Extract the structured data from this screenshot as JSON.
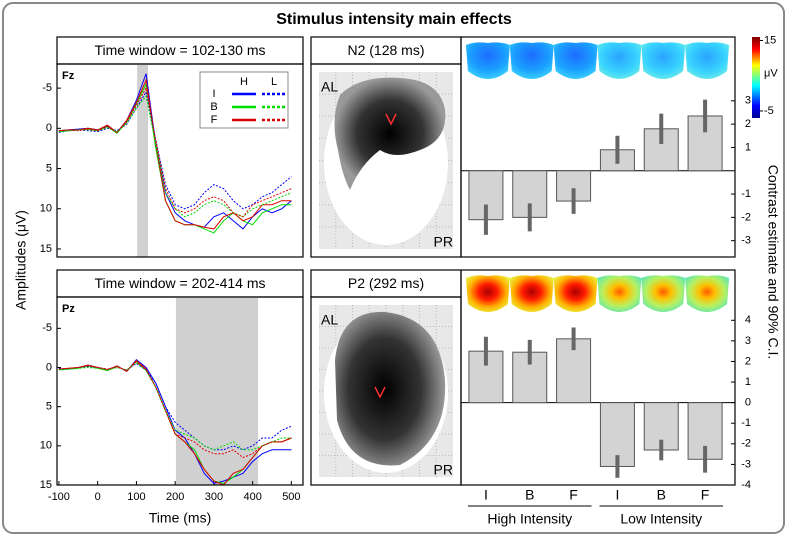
{
  "title": "Stimulus intensity main effects",
  "ylabel": "Amplitudes (μV)",
  "contrast_axis_label": "Contrast estimate and 90% C.I.",
  "colorbar": {
    "label": "μV",
    "ticks": [
      -5,
      15
    ],
    "lim": [
      -7,
      16
    ]
  },
  "sources": [
    {
      "title": "N2 (128 ms)",
      "labels": [
        "AL",
        "PR"
      ]
    },
    {
      "title": "P2 (292 ms)",
      "labels": [
        "AL",
        "PR"
      ]
    }
  ],
  "chart_data": [
    {
      "type": "line",
      "title": "Time window = 102-130 ms",
      "channel": "Fz",
      "x": [
        -100,
        -75,
        -50,
        -25,
        0,
        25,
        50,
        75,
        100,
        125,
        150,
        175,
        200,
        225,
        250,
        275,
        300,
        325,
        350,
        375,
        400,
        425,
        450,
        475,
        500
      ],
      "xlim": [
        -105,
        530
      ],
      "ylim": [
        -8,
        16
      ],
      "y_reversed": true,
      "yticks": [
        -5,
        0,
        5,
        10,
        15
      ],
      "window": [
        102,
        130
      ],
      "legend": {
        "rows": [
          "I",
          "B",
          "F"
        ],
        "columns": [
          "H",
          "L"
        ]
      },
      "series": [
        {
          "row": 0,
          "column": 0,
          "color": "#0000ff",
          "line_style": "solid",
          "values": [
            0.3,
            0.2,
            0.1,
            0,
            0.2,
            -0.3,
            0.5,
            -1,
            -3.5,
            -6.8,
            2,
            8,
            10.5,
            11.5,
            12,
            12.3,
            11,
            10.5,
            11.5,
            12.5,
            11,
            10,
            10.5,
            10,
            9
          ]
        },
        {
          "row": 1,
          "column": 0,
          "color": "#00dd00",
          "line_style": "solid",
          "values": [
            0.4,
            0.3,
            0.2,
            0.1,
            0.3,
            -0.2,
            0.6,
            -0.8,
            -3,
            -5.5,
            2.5,
            9,
            11.5,
            12,
            12,
            12.5,
            13,
            11.5,
            10.5,
            11.5,
            12,
            10.5,
            10,
            9.5,
            9.5
          ]
        },
        {
          "row": 2,
          "column": 0,
          "color": "#dd0000",
          "line_style": "solid",
          "values": [
            0.3,
            0.2,
            0.2,
            0,
            0.2,
            -0.4,
            0.5,
            -1,
            -3.2,
            -6,
            2,
            9,
            11.5,
            12,
            12,
            12.3,
            12.5,
            11,
            10.5,
            11.5,
            11,
            9.5,
            9.5,
            9,
            9
          ]
        },
        {
          "row": 0,
          "column": 1,
          "color": "#0000ff",
          "line_style": "dotted",
          "values": [
            0.5,
            0.3,
            0.2,
            0.3,
            0.4,
            0,
            0.3,
            -0.5,
            -2.5,
            -4.5,
            1.5,
            7,
            9.5,
            10,
            9.5,
            8,
            7,
            7.5,
            9,
            10,
            9.5,
            8.5,
            8,
            7,
            6
          ]
        },
        {
          "row": 1,
          "column": 1,
          "color": "#00dd00",
          "line_style": "dotted",
          "values": [
            0.4,
            0.3,
            0.2,
            0.2,
            0.3,
            -0.1,
            0.4,
            -0.6,
            -2.5,
            -4,
            2,
            8,
            10,
            11,
            10.5,
            9.5,
            9,
            9.5,
            10.5,
            11,
            10,
            9.5,
            9,
            8.5,
            8
          ]
        },
        {
          "row": 2,
          "column": 1,
          "color": "#dd0000",
          "line_style": "dotted",
          "values": [
            0.3,
            0.2,
            0.3,
            0.1,
            0.3,
            -0.2,
            0.5,
            -0.8,
            -2.8,
            -5,
            1.5,
            7.5,
            10,
            10.5,
            10,
            9,
            8.5,
            9,
            10.5,
            11,
            9.5,
            9,
            8.5,
            8,
            7.5
          ]
        }
      ]
    },
    {
      "type": "line",
      "title": "Time window = 202-414 ms",
      "channel": "Pz",
      "xlabel": "Time (ms)",
      "x": [
        -100,
        -75,
        -50,
        -25,
        0,
        25,
        50,
        75,
        100,
        125,
        150,
        175,
        200,
        225,
        250,
        275,
        300,
        325,
        350,
        375,
        400,
        425,
        450,
        475,
        500
      ],
      "xlim": [
        -105,
        530
      ],
      "xticks": [
        -100,
        0,
        100,
        200,
        300,
        400,
        500
      ],
      "ylim": [
        -9,
        15
      ],
      "y_reversed": true,
      "yticks": [
        -5,
        0,
        5,
        10,
        15
      ],
      "window": [
        202,
        414
      ],
      "series": [
        {
          "row": 0,
          "column": 0,
          "color": "#0000ff",
          "line_style": "solid",
          "values": [
            0.2,
            0.2,
            0,
            -0.3,
            0,
            0.3,
            -0.2,
            0.5,
            -1,
            0,
            2,
            5,
            8,
            9,
            11,
            13.5,
            14.8,
            14.5,
            14,
            13.5,
            12,
            11,
            10.5,
            10.5,
            10.5
          ]
        },
        {
          "row": 1,
          "column": 0,
          "color": "#00dd00",
          "line_style": "solid",
          "values": [
            0.3,
            0.2,
            0.1,
            -0.2,
            0.1,
            0.4,
            -0.1,
            0.4,
            -0.8,
            0.3,
            2.5,
            5.5,
            8.5,
            9.5,
            10.5,
            13,
            14.5,
            14.8,
            14,
            13,
            11.5,
            10,
            9.5,
            9.5,
            9
          ]
        },
        {
          "row": 2,
          "column": 0,
          "color": "#dd0000",
          "line_style": "solid",
          "values": [
            0.2,
            0.1,
            0,
            -0.3,
            0,
            0.3,
            -0.2,
            0.5,
            -0.9,
            0.2,
            2.5,
            5.5,
            8.5,
            9.5,
            11,
            13,
            14.5,
            15,
            13.5,
            13,
            11.5,
            10,
            9.5,
            9.5,
            9
          ]
        },
        {
          "row": 0,
          "column": 1,
          "color": "#0000ff",
          "line_style": "dotted",
          "values": [
            0.1,
            0.2,
            0,
            -0.1,
            0,
            0.2,
            0,
            0.3,
            -0.5,
            0.3,
            2,
            5,
            7,
            8,
            9,
            10,
            10.5,
            10.5,
            10,
            10.5,
            10,
            9,
            9,
            8,
            7.5
          ]
        },
        {
          "row": 1,
          "column": 1,
          "color": "#00dd00",
          "line_style": "dotted",
          "values": [
            0.2,
            0.2,
            0.1,
            0,
            0.1,
            0.3,
            0,
            0.3,
            -0.6,
            0.4,
            2.5,
            5.5,
            8,
            8.5,
            9,
            10,
            10.5,
            10,
            9.5,
            10.5,
            10.5,
            10,
            9.5,
            9,
            9
          ]
        },
        {
          "row": 2,
          "column": 1,
          "color": "#dd0000",
          "line_style": "dotted",
          "values": [
            0.2,
            0.1,
            0,
            -0.2,
            0,
            0.2,
            -0.1,
            0.4,
            -0.7,
            0.3,
            2.5,
            5.5,
            8.5,
            9,
            9.5,
            10.5,
            11,
            11,
            10.5,
            11.5,
            11,
            10,
            9.5,
            9.5,
            9
          ]
        }
      ]
    },
    {
      "type": "bar",
      "color": "#d3d3d3",
      "values": [
        -2.1,
        -2.0,
        -1.3,
        0.9,
        1.8,
        2.35
      ],
      "errors": [
        0.65,
        0.6,
        0.55,
        0.6,
        0.65,
        0.7
      ],
      "ylim": [
        -3.7,
        3.55
      ],
      "yticks": [
        -3,
        -2,
        -1,
        1,
        2,
        3
      ]
    },
    {
      "type": "bar",
      "color": "#d3d3d3",
      "categories": [
        "I",
        "B",
        "F",
        "I",
        "B",
        "F"
      ],
      "groups": [
        "High Intensity",
        "Low Intensity"
      ],
      "values": [
        2.5,
        2.45,
        3.1,
        -3.1,
        -2.3,
        -2.75
      ],
      "errors": [
        0.7,
        0.6,
        0.55,
        0.55,
        0.5,
        0.65
      ],
      "ylim": [
        -4,
        4.5
      ],
      "yticks": [
        -4,
        -3,
        -2,
        -1,
        0,
        1,
        2,
        3,
        4
      ]
    }
  ]
}
